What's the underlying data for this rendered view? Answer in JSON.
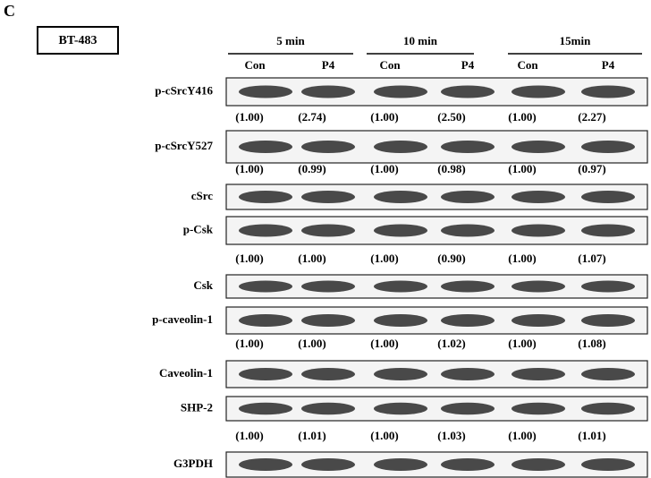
{
  "panel_label": "C",
  "cell_line": "BT-483",
  "time_groups": [
    "5 min",
    "10 min",
    "15min"
  ],
  "lanes": [
    "Con",
    "P4",
    "Con",
    "P4",
    "Con",
    "P4"
  ],
  "blots": [
    {
      "label": "p-cSrcY416",
      "quantification": [
        "(1.00)",
        "(2.74)",
        "(1.00)",
        "(2.50)",
        "(1.00)",
        "(2.27)"
      ]
    },
    {
      "label": "p-cSrcY527",
      "quantification": [
        "(1.00)",
        "(0.99)",
        "(1.00)",
        "(0.98)",
        "(1.00)",
        "(0.97)"
      ]
    },
    {
      "label": "cSrc"
    },
    {
      "label": "p-Csk",
      "quantification": [
        "(1.00)",
        "(1.00)",
        "(1.00)",
        "(0.90)",
        "(1.00)",
        "(1.07)"
      ]
    },
    {
      "label": "Csk"
    },
    {
      "label": "p-caveolin-1",
      "quantification": [
        "(1.00)",
        "(1.00)",
        "(1.00)",
        "(1.02)",
        "(1.00)",
        "(1.08)"
      ]
    },
    {
      "label": "Caveolin-1"
    },
    {
      "label": "SHP-2",
      "quantification": [
        "(1.00)",
        "(1.01)",
        "(1.00)",
        "(1.03)",
        "(1.00)",
        "(1.01)"
      ]
    },
    {
      "label": "G3PDH"
    }
  ]
}
